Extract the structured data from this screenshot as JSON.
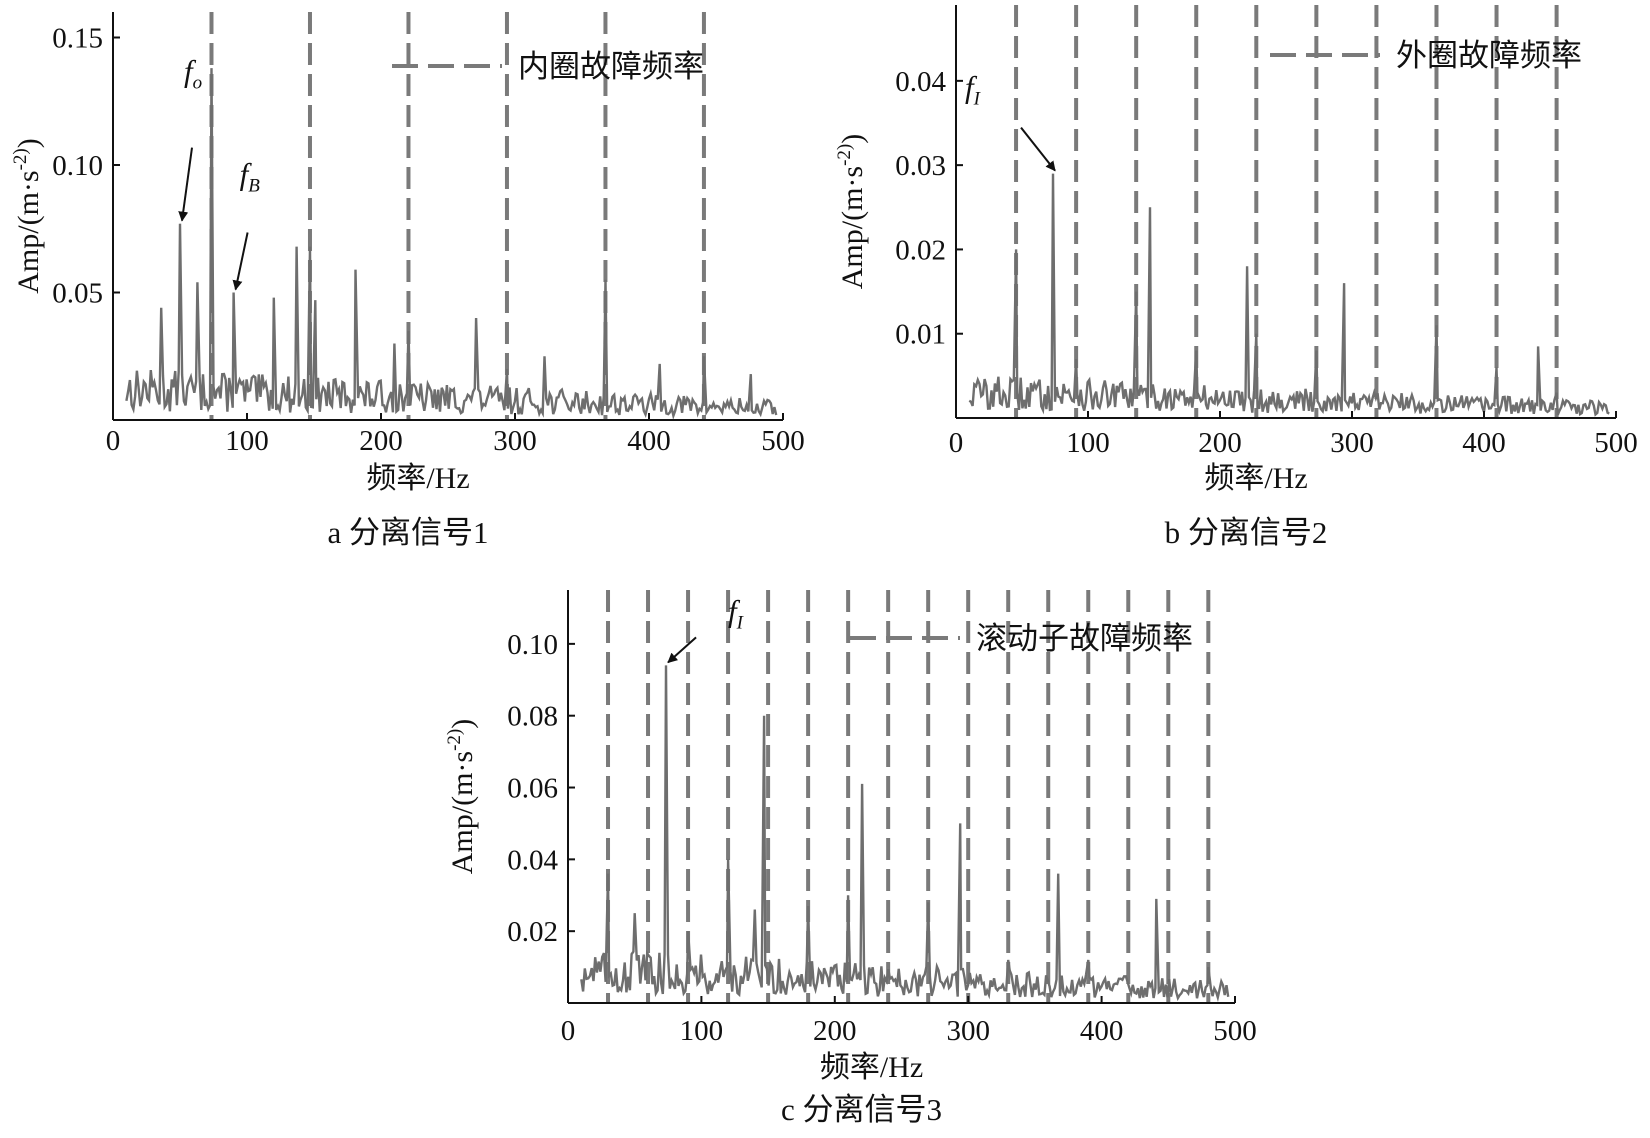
{
  "chart_data": [
    {
      "id": "a",
      "type": "line",
      "caption": "a 分离信号1",
      "xlabel": "频率/Hz",
      "ylabel": "Amp/(m·s^-2)",
      "xlim": [
        0,
        500
      ],
      "ylim": [
        0,
        0.16
      ],
      "xticks": [
        0,
        100,
        200,
        300,
        400,
        500
      ],
      "xtick_labels": [
        "0",
        "100",
        "200",
        "300",
        "400",
        "500"
      ],
      "yticks": [
        0.05,
        0.1,
        0.15
      ],
      "ytick_labels": [
        "0.05",
        "0.10",
        "0.15"
      ],
      "legend": {
        "label": "内圈故障频率",
        "position": "top-right"
      },
      "fault_lines": [
        73.5,
        147,
        220.5,
        294,
        367.5,
        441
      ],
      "noise_level": 0.012,
      "spikes": [
        [
          36,
          0.044
        ],
        [
          50,
          0.077
        ],
        [
          63,
          0.054
        ],
        [
          73.5,
          0.138
        ],
        [
          90,
          0.05
        ],
        [
          120,
          0.048
        ],
        [
          137,
          0.068
        ],
        [
          147,
          0.068
        ],
        [
          151,
          0.047
        ],
        [
          181,
          0.059
        ],
        [
          210,
          0.03
        ],
        [
          220.5,
          0.035
        ],
        [
          271,
          0.04
        ],
        [
          294,
          0.02
        ],
        [
          322,
          0.025
        ],
        [
          367.5,
          0.055
        ],
        [
          408,
          0.022
        ],
        [
          441,
          0.025
        ],
        [
          476,
          0.018
        ]
      ],
      "annotations": [
        {
          "label": "f",
          "sub": "o",
          "x": 50,
          "y": 0.077
        },
        {
          "label": "f",
          "sub": "B",
          "x": 90,
          "y": 0.05
        }
      ]
    },
    {
      "id": "b",
      "type": "line",
      "caption": "b 分离信号2",
      "xlabel": "频率/Hz",
      "ylabel": "Amp/(m·s^-2)",
      "xlim": [
        0,
        500
      ],
      "ylim": [
        0,
        0.049
      ],
      "xticks": [
        0,
        100,
        200,
        300,
        400,
        500
      ],
      "xtick_labels": [
        "0",
        "100",
        "200",
        "300",
        "400",
        "500"
      ],
      "yticks": [
        0.01,
        0.02,
        0.03,
        0.04
      ],
      "ytick_labels": [
        "0.01",
        "0.02",
        "0.03",
        "0.04"
      ],
      "legend": {
        "label": "外圈故障频率",
        "position": "top-right"
      },
      "fault_lines": [
        45.5,
        91,
        136.5,
        182,
        227.5,
        273,
        318.5,
        364,
        409.5,
        455
      ],
      "noise_level": 0.003,
      "spikes": [
        [
          45.5,
          0.02
        ],
        [
          73.5,
          0.029
        ],
        [
          91,
          0.007
        ],
        [
          136.5,
          0.015
        ],
        [
          147,
          0.025
        ],
        [
          182,
          0.008
        ],
        [
          220.5,
          0.018
        ],
        [
          227.5,
          0.01
        ],
        [
          273,
          0.008
        ],
        [
          294,
          0.016
        ],
        [
          364,
          0.011
        ],
        [
          409.5,
          0.006
        ],
        [
          441,
          0.0085
        ],
        [
          455,
          0.003
        ]
      ],
      "annotations": [
        {
          "label": "f",
          "sub": "I",
          "x": 73.5,
          "y": 0.029
        }
      ]
    },
    {
      "id": "c",
      "type": "line",
      "caption": "c 分离信号3",
      "xlabel": "频率/Hz",
      "ylabel": "Amp/(m·s^-2)",
      "xlim": [
        0,
        500
      ],
      "ylim": [
        0,
        0.115
      ],
      "xticks": [
        0,
        100,
        200,
        300,
        400,
        500
      ],
      "xtick_labels": [
        "0",
        "100",
        "200",
        "300",
        "400",
        "500"
      ],
      "yticks": [
        0.02,
        0.04,
        0.06,
        0.08,
        0.1
      ],
      "ytick_labels": [
        "0.02",
        "0.04",
        "0.06",
        "0.08",
        "0.10"
      ],
      "legend": {
        "label": "滚动子故障频率",
        "position": "top-right"
      },
      "fault_lines": [
        30,
        60,
        90,
        120,
        150,
        180,
        210,
        240,
        270,
        300,
        330,
        360,
        390,
        420,
        450,
        480
      ],
      "noise_level": 0.009,
      "spikes": [
        [
          30,
          0.036
        ],
        [
          50,
          0.025
        ],
        [
          73.5,
          0.094
        ],
        [
          90,
          0.02
        ],
        [
          120,
          0.04
        ],
        [
          140,
          0.026
        ],
        [
          147,
          0.08
        ],
        [
          180,
          0.027
        ],
        [
          210,
          0.03
        ],
        [
          220.5,
          0.061
        ],
        [
          270,
          0.028
        ],
        [
          294,
          0.05
        ],
        [
          330,
          0.012
        ],
        [
          367.5,
          0.036
        ],
        [
          390,
          0.012
        ],
        [
          441,
          0.029
        ],
        [
          480,
          0.01
        ]
      ],
      "annotations": [
        {
          "label": "f",
          "sub": "I",
          "x": 73.5,
          "y": 0.094
        }
      ]
    }
  ]
}
